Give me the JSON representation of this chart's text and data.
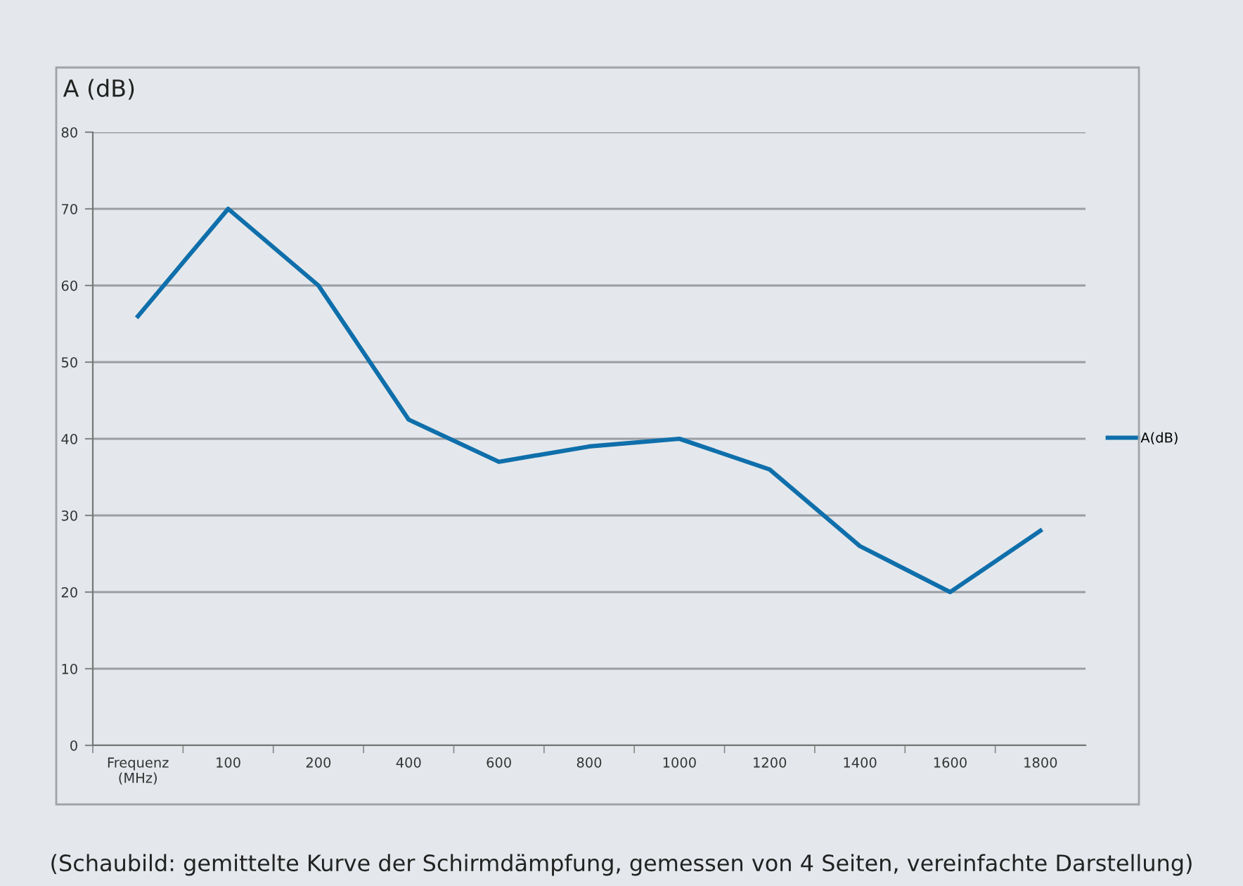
{
  "chart_data": {
    "type": "line",
    "ylabel": "A (dB)",
    "categories": [
      "Frequenz\n(MHz)",
      "100",
      "200",
      "400",
      "600",
      "800",
      "1000",
      "1200",
      "1400",
      "1600",
      "1800"
    ],
    "series": [
      {
        "name": "A(dB)",
        "color": "#0f6fab",
        "values": [
          56,
          70,
          60,
          42.5,
          37,
          39,
          40,
          36,
          26,
          20,
          28
        ]
      }
    ],
    "ylim": [
      0,
      80
    ],
    "yticks": [
      0,
      10,
      20,
      30,
      40,
      50,
      60,
      70,
      80
    ],
    "grid": "y",
    "legend": "right",
    "marker": "none",
    "line_style": "solid",
    "annotations": [
      "(Schaubild: gemittelte Kurve der Schirmdämpfung, gemessen von 4 Seiten, vereinfachte Darstellung)"
    ]
  }
}
